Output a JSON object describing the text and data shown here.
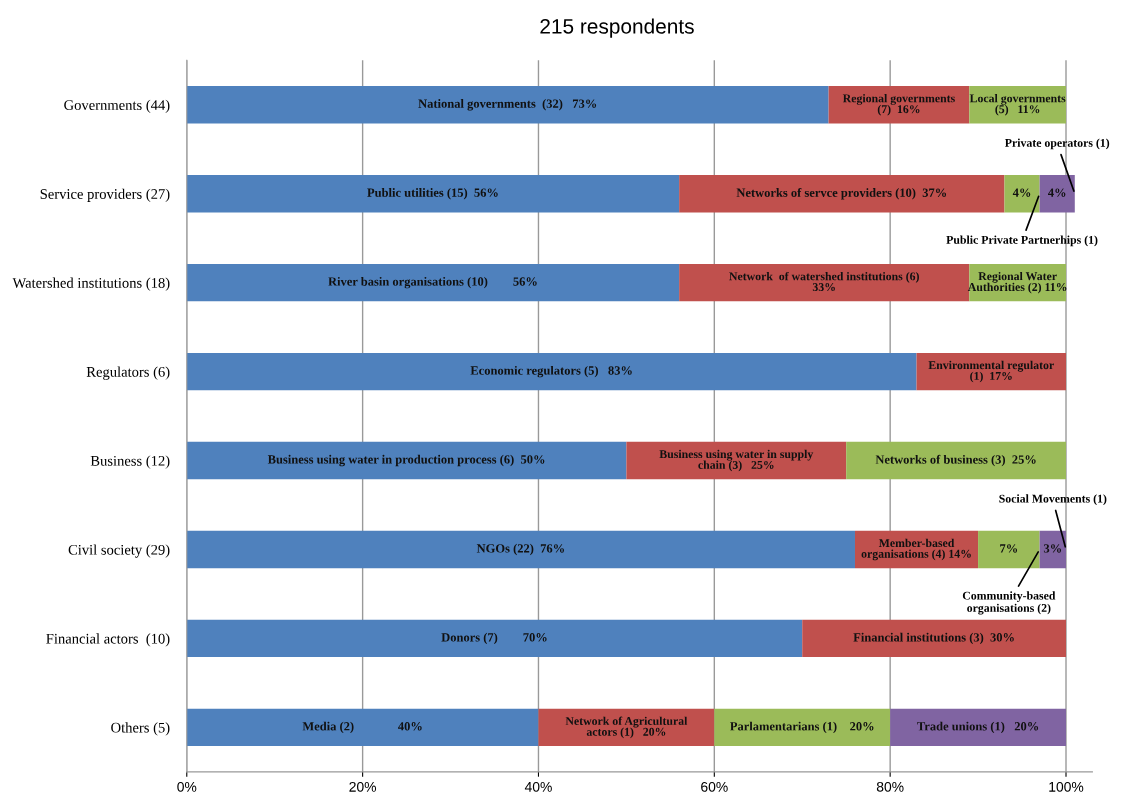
{
  "chart_data": {
    "type": "bar",
    "orientation": "horizontal",
    "stacked": true,
    "title": "215 respondents",
    "categories": [
      "Governments (44)",
      "Service providers (27)",
      "Watershed institutions (18)",
      "Regulators (6)",
      "Business (12)",
      "Civil society (29)",
      "Financial actors  (10)",
      "Others (5)"
    ],
    "series": [
      {
        "color": "#4f81bd",
        "values": [
          73,
          56,
          56,
          83,
          50,
          76,
          70,
          40
        ],
        "value_labels": [
          "National governments  (32)   73%",
          "Public utilities (15)  56%",
          "River basin organisations (10)        56%",
          "Economic regulators (5)   83%",
          "Business using water in production process (6)  50%",
          "NGOs (22)  76%",
          "Donors (7)        70%",
          "Media (2)              40%"
        ]
      },
      {
        "color": "#c0504d",
        "values": [
          16,
          37,
          33,
          17,
          25,
          14,
          30,
          20
        ],
        "value_labels": [
          "Regional governments\n(7)  16%",
          "Networks of servce providers (10)  37%",
          "Network  of watershed institutions (6)\n33%",
          "Environmental regulator\n(1)  17%",
          "Business using water in supply\nchain (3)   25%",
          "Member-based\norganisations (4) 14%",
          "Financial institutions (3)  30%",
          "Network of Agricultural\nactors (1)   20%"
        ]
      },
      {
        "color": "#9bbb59",
        "values": [
          11,
          4,
          11,
          null,
          25,
          7,
          null,
          20
        ],
        "value_labels": [
          "Local governments\n(5)   11%",
          "4%",
          "Regional Water\nAuthorities (2) 11%",
          null,
          "Networks of business (3)  25%",
          "7%",
          null,
          "Parlamentarians (1)    20%"
        ]
      },
      {
        "color": "#8064a2",
        "values": [
          null,
          4,
          null,
          null,
          null,
          3,
          null,
          20
        ],
        "value_labels": [
          null,
          "4%",
          null,
          null,
          null,
          "3%",
          null,
          "Trade unions (1)   20%"
        ]
      }
    ],
    "xlim": [
      0,
      103
    ],
    "xticks": [
      {
        "value": 0,
        "label": "0%"
      },
      {
        "value": 20,
        "label": "20%"
      },
      {
        "value": 40,
        "label": "40%"
      },
      {
        "value": 60,
        "label": "60%"
      },
      {
        "value": 80,
        "label": "80%"
      },
      {
        "value": 100,
        "label": "100%"
      }
    ],
    "grid": "x",
    "annotations": [
      {
        "text": "Private operators (1)",
        "x": 101,
        "y": "Service providers (27)"
      },
      {
        "text": "Public Private Partnerhips (1)",
        "x": 97,
        "y": "Service providers (27)"
      },
      {
        "text": "Social Movements (1)",
        "x": 100,
        "y": "Civil society (29)"
      },
      {
        "text": "Community-based\norganisations (2)",
        "x": 97,
        "y": "Civil society (29)"
      }
    ]
  }
}
